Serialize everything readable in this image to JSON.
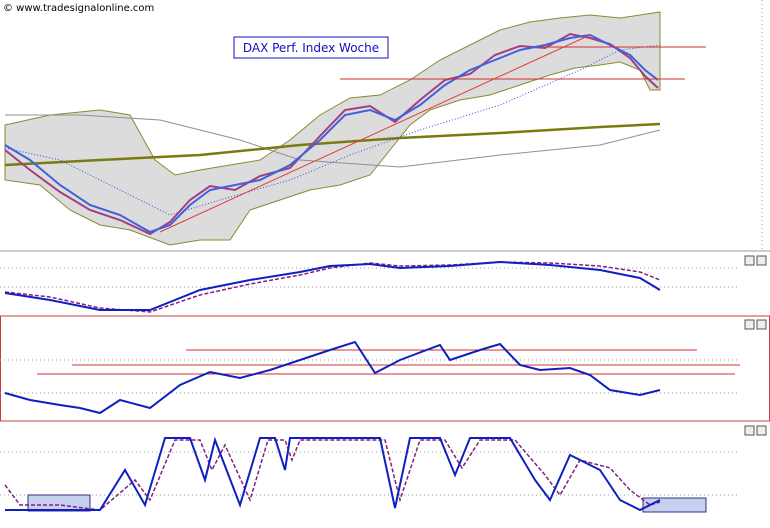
{
  "header": {
    "copyright": "© www.tradesignalonline.com"
  },
  "chart": {
    "title": "DAX Perf. Index Woche"
  }
}
